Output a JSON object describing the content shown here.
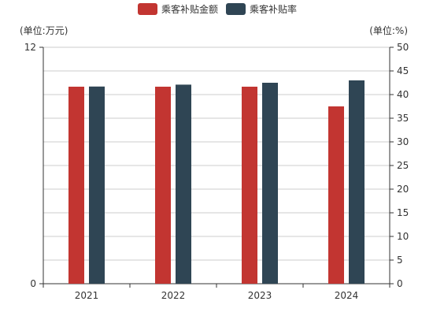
{
  "chart_data": {
    "type": "bar",
    "categories": [
      "2021",
      "2022",
      "2023",
      "2024"
    ],
    "series": [
      {
        "name": "乘客补贴金额",
        "axis": "left",
        "color": "#c23531",
        "values": [
          10.0,
          10.0,
          10.0,
          9.0
        ]
      },
      {
        "name": "乘客补贴率",
        "axis": "right",
        "color": "#2f4554",
        "values": [
          41.7,
          42.1,
          42.5,
          43.0
        ]
      }
    ],
    "yaxis_left": {
      "unit_label": "(单位:万元)",
      "min": 0,
      "max": 12,
      "tick_labels": [
        "0",
        "12"
      ]
    },
    "yaxis_right": {
      "unit_label": "(单位:%)",
      "min": 0,
      "max": 50,
      "tick_labels": [
        "0",
        "5",
        "10",
        "15",
        "20",
        "25",
        "30",
        "35",
        "40",
        "45",
        "50"
      ]
    },
    "grid": true,
    "legend_position": "top-center"
  }
}
